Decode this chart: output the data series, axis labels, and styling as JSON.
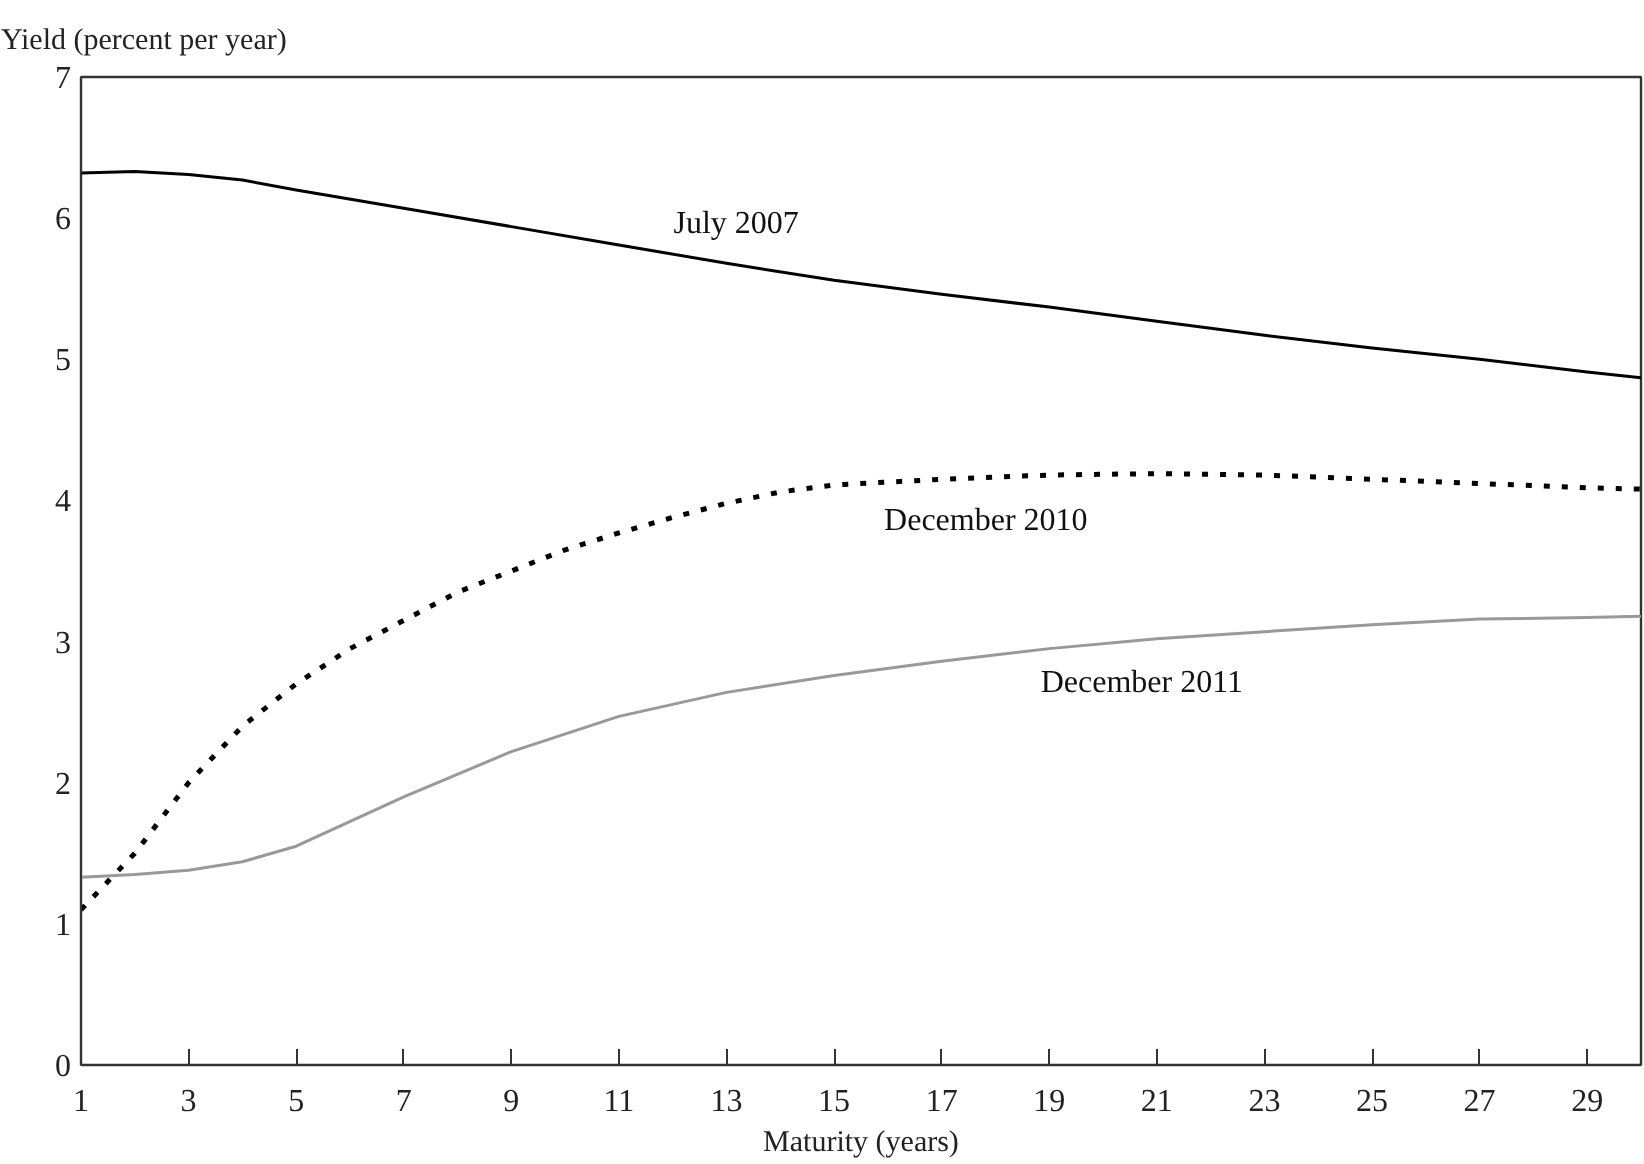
{
  "chart_data": {
    "type": "line",
    "ylabel": "Yield (percent per year)",
    "xlabel": "Maturity (years)",
    "xlim": [
      1,
      30
    ],
    "xticks": [
      1,
      3,
      5,
      7,
      9,
      11,
      13,
      15,
      17,
      19,
      21,
      23,
      25,
      27,
      29
    ],
    "ylim": [
      0,
      7
    ],
    "yticks": [
      0,
      1,
      2,
      3,
      4,
      5,
      6,
      7
    ],
    "grid": false,
    "legend": false,
    "marker": "none",
    "series": [
      {
        "name": "July 2007",
        "color": "#000000",
        "line_style": "solid",
        "x": [
          1,
          2,
          3,
          4,
          5,
          7,
          9,
          11,
          13,
          15,
          17,
          19,
          21,
          23,
          25,
          27,
          29,
          30
        ],
        "values": [
          6.32,
          6.33,
          6.31,
          6.27,
          6.2,
          6.07,
          5.94,
          5.81,
          5.68,
          5.56,
          5.46,
          5.37,
          5.27,
          5.17,
          5.08,
          5.0,
          4.91,
          4.87
        ]
      },
      {
        "name": "December 2010",
        "color": "#000000",
        "line_style": "dotted",
        "x": [
          1,
          2,
          3,
          4,
          5,
          6,
          7,
          8,
          9,
          10,
          11,
          12,
          13,
          14,
          15,
          17,
          19,
          21,
          23,
          25,
          27,
          29,
          30
        ],
        "values": [
          1.1,
          1.5,
          2.0,
          2.4,
          2.7,
          2.95,
          3.15,
          3.35,
          3.5,
          3.65,
          3.77,
          3.88,
          3.98,
          4.06,
          4.11,
          4.15,
          4.18,
          4.19,
          4.18,
          4.15,
          4.12,
          4.09,
          4.08
        ]
      },
      {
        "name": "December 2011",
        "color": "#999999",
        "line_style": "solid",
        "x": [
          1,
          2,
          3,
          4,
          5,
          7,
          9,
          11,
          13,
          15,
          17,
          19,
          21,
          23,
          25,
          27,
          29,
          30
        ],
        "values": [
          1.33,
          1.35,
          1.38,
          1.44,
          1.55,
          1.9,
          2.22,
          2.47,
          2.64,
          2.76,
          2.86,
          2.95,
          3.02,
          3.07,
          3.12,
          3.16,
          3.17,
          3.18
        ]
      }
    ]
  }
}
